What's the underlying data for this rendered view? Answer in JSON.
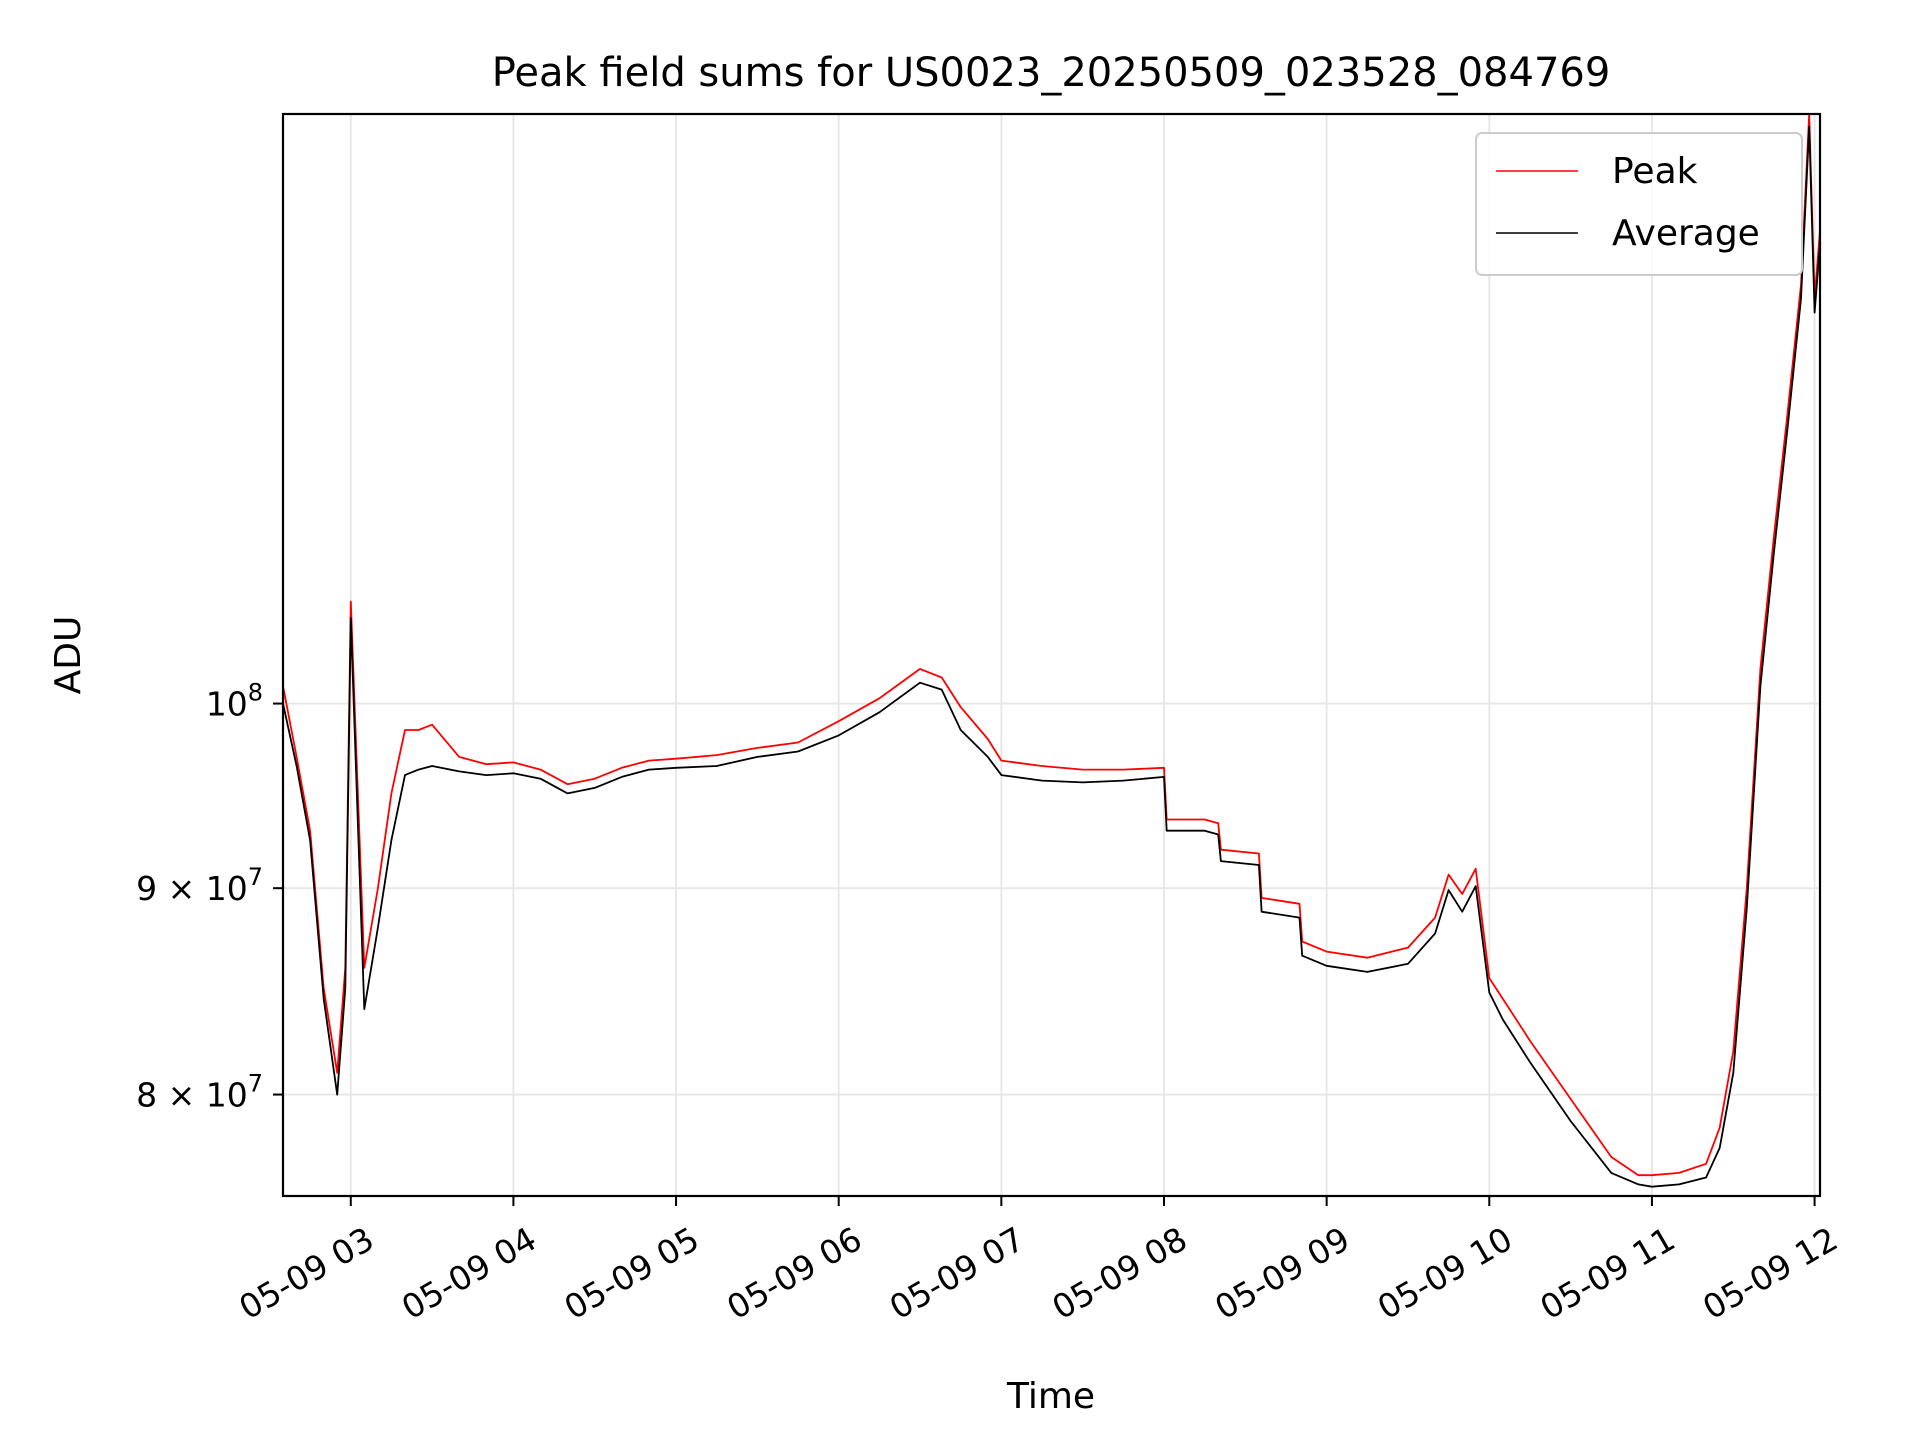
{
  "chart_data": {
    "type": "line",
    "title": "Peak field sums for US0023_20250509_023528_084769",
    "xlabel": "Time",
    "ylabel": "ADU",
    "y_scale": "log",
    "grid": true,
    "legend_position": "top-right",
    "x_range": [
      "05-09 02:35",
      "05-09 12:02"
    ],
    "ylim": [
      75500000,
      140000000
    ],
    "x_ticks": [
      "05-09 03",
      "05-09 04",
      "05-09 05",
      "05-09 06",
      "05-09 07",
      "05-09 08",
      "05-09 09",
      "05-09 10",
      "05-09 11",
      "05-09 12"
    ],
    "y_ticks": [
      {
        "value": 80000000,
        "mantissa": "8",
        "base": "10",
        "exponent": "7"
      },
      {
        "value": 90000000,
        "mantissa": "9",
        "base": "10",
        "exponent": "7"
      },
      {
        "value": 100000000,
        "mantissa": "",
        "base": "10",
        "exponent": "8"
      }
    ],
    "colors": {
      "Peak": "#ff0000",
      "Average": "#000000",
      "grid": "#e6e6e6"
    },
    "x": [
      "05-09 02:35",
      "05-09 02:40",
      "05-09 02:45",
      "05-09 02:50",
      "05-09 02:55",
      "05-09 02:58",
      "05-09 03:00",
      "05-09 03:05",
      "05-09 03:10",
      "05-09 03:15",
      "05-09 03:20",
      "05-09 03:25",
      "05-09 03:30",
      "05-09 03:40",
      "05-09 03:50",
      "05-09 04:00",
      "05-09 04:10",
      "05-09 04:20",
      "05-09 04:30",
      "05-09 04:40",
      "05-09 04:50",
      "05-09 05:00",
      "05-09 05:15",
      "05-09 05:30",
      "05-09 05:45",
      "05-09 06:00",
      "05-09 06:15",
      "05-09 06:30",
      "05-09 06:38",
      "05-09 06:45",
      "05-09 06:55",
      "05-09 07:00",
      "05-09 07:15",
      "05-09 07:30",
      "05-09 07:45",
      "05-09 08:00",
      "05-09 08:01",
      "05-09 08:15",
      "05-09 08:20",
      "05-09 08:21",
      "05-09 08:35",
      "05-09 08:36",
      "05-09 08:50",
      "05-09 08:51",
      "05-09 09:00",
      "05-09 09:15",
      "05-09 09:30",
      "05-09 09:40",
      "05-09 09:45",
      "05-09 09:50",
      "05-09 09:55",
      "05-09 10:00",
      "05-09 10:05",
      "05-09 10:15",
      "05-09 10:30",
      "05-09 10:45",
      "05-09 10:55",
      "05-09 11:00",
      "05-09 11:10",
      "05-09 11:20",
      "05-09 11:25",
      "05-09 11:30",
      "05-09 11:35",
      "05-09 11:40",
      "05-09 11:45",
      "05-09 11:50",
      "05-09 11:55",
      "05-09 11:58",
      "05-09 12:00",
      "05-09 12:02"
    ],
    "series": [
      {
        "name": "Peak",
        "values": [
          101000000,
          97000000,
          93000000,
          85000000,
          81000000,
          86000000,
          106000000,
          86000000,
          90000000,
          95000000,
          98500000,
          98500000,
          98800000,
          97000000,
          96600000,
          96700000,
          96300000,
          95500000,
          95800000,
          96400000,
          96800000,
          96900000,
          97100000,
          97500000,
          97800000,
          99000000,
          100300000,
          102000000,
          101500000,
          99800000,
          98000000,
          96800000,
          96500000,
          96300000,
          96300000,
          96400000,
          93600000,
          93600000,
          93400000,
          92000000,
          91800000,
          89500000,
          89200000,
          87300000,
          86800000,
          86500000,
          87000000,
          88500000,
          90700000,
          89700000,
          91000000,
          85500000,
          84500000,
          82500000,
          79800000,
          77200000,
          76400000,
          76400000,
          76500000,
          76900000,
          78500000,
          82000000,
          90000000,
          102000000,
          110000000,
          118000000,
          127000000,
          142000000,
          126000000,
          131000000
        ]
      },
      {
        "name": "Average",
        "values": [
          100000000,
          96500000,
          92500000,
          84500000,
          80000000,
          85000000,
          105000000,
          84000000,
          88000000,
          92500000,
          96000000,
          96300000,
          96500000,
          96200000,
          96000000,
          96100000,
          95800000,
          95000000,
          95300000,
          95900000,
          96300000,
          96400000,
          96500000,
          97000000,
          97300000,
          98200000,
          99500000,
          101200000,
          100800000,
          98500000,
          97000000,
          96000000,
          95700000,
          95600000,
          95700000,
          95900000,
          93000000,
          93000000,
          92800000,
          91400000,
          91200000,
          88800000,
          88500000,
          86600000,
          86100000,
          85800000,
          86200000,
          87700000,
          89900000,
          88800000,
          90100000,
          84800000,
          83500000,
          81500000,
          78800000,
          76500000,
          76000000,
          75900000,
          76000000,
          76300000,
          77600000,
          81000000,
          89000000,
          101000000,
          109000000,
          117000000,
          126000000,
          139000000,
          125000000,
          130000000
        ]
      }
    ]
  }
}
